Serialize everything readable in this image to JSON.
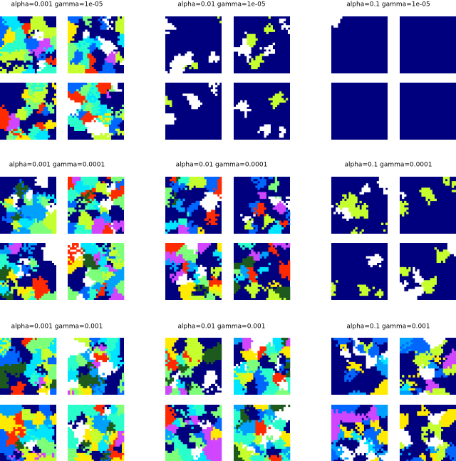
{
  "panels": [
    {
      "title": "alpha=0.001  gamma=1e-05"
    },
    {
      "title": "alpha=0.01  gamma=1e-05"
    },
    {
      "title": "alpha=0.1  gamma=1e-05"
    },
    {
      "title": "alpha=0.001  gamma=0.0001"
    },
    {
      "title": "alpha=0.01  gamma=0.0001"
    },
    {
      "title": "alpha=0.1  gamma=0.0001"
    },
    {
      "title": "alpha=0.001  gamma=0.001"
    },
    {
      "title": "alpha=0.01  gamma=0.001"
    },
    {
      "title": "alpha=0.1  gamma=0.001"
    }
  ]
}
